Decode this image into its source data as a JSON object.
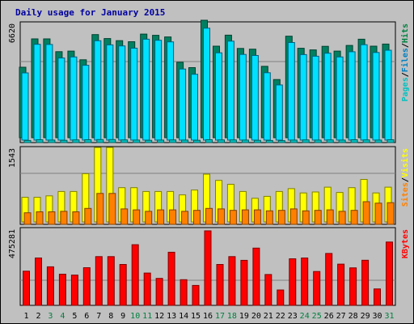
{
  "chart_data": {
    "type": "bar",
    "title": "Daily usage for January 2015",
    "categories": [
      "1",
      "2",
      "3",
      "4",
      "5",
      "6",
      "7",
      "8",
      "9",
      "10",
      "11",
      "12",
      "13",
      "14",
      "15",
      "16",
      "17",
      "18",
      "19",
      "20",
      "21",
      "22",
      "23",
      "24",
      "25",
      "26",
      "27",
      "28",
      "29",
      "30",
      "31"
    ],
    "weekend_days": [
      "3",
      "4",
      "10",
      "11",
      "17",
      "18",
      "24",
      "25",
      "31"
    ],
    "panels": [
      {
        "id": "hits-files",
        "ytick_label": "6620",
        "ymax": 6620,
        "right_label": [
          {
            "text": "Pages",
            "color": "#00c0c0"
          },
          {
            "text": "/",
            "color": "#000000"
          },
          {
            "text": "Files",
            "color": "#0080c0"
          },
          {
            "text": "/",
            "color": "#000000"
          },
          {
            "text": "Hits",
            "color": "#008040"
          }
        ],
        "series": [
          {
            "name": "Hits",
            "color": "#008060",
            "values": [
              3970,
              5570,
              5570,
              4850,
              4880,
              4390,
              5810,
              5590,
              5470,
              5410,
              5840,
              5770,
              5680,
              4250,
              3950,
              6620,
              5160,
              5780,
              5030,
              4990,
              4020,
              3280,
              5720,
              5040,
              4950,
              5150,
              4880,
              5200,
              5550,
              5160,
              5280
            ]
          },
          {
            "name": "Files",
            "color": "#00e0ff",
            "values": [
              3790,
              5400,
              5390,
              4630,
              4690,
              4220,
              5600,
              5370,
              5310,
              5180,
              5690,
              5630,
              5540,
              4010,
              3710,
              6310,
              4920,
              5580,
              4830,
              4770,
              3800,
              3110,
              5500,
              4820,
              4730,
              4900,
              4690,
              4980,
              5380,
              4940,
              5070
            ]
          },
          {
            "name": "Pages",
            "color": "#00c0c0",
            "values": [
              120,
              160,
              140,
              130,
              150,
              160,
              170,
              170,
              150,
              140,
              130,
              140,
              150,
              140,
              130,
              160,
              150,
              150,
              140,
              130,
              120,
              110,
              140,
              150,
              140,
              150,
              140,
              160,
              150,
              140,
              160
            ]
          }
        ]
      },
      {
        "id": "visits-sites",
        "ytick_label": "1543",
        "ymax": 1543,
        "right_label": [
          {
            "text": "Sites",
            "color": "#ff8000"
          },
          {
            "text": "/",
            "color": "#000000"
          },
          {
            "text": "Visits",
            "color": "#ffff00"
          }
        ],
        "series": [
          {
            "name": "Visits",
            "color": "#ffff00",
            "values": [
              510,
              510,
              540,
              630,
              630,
              1000,
              1543,
              1543,
              710,
              710,
              630,
              630,
              630,
              560,
              660,
              990,
              860,
              780,
              630,
              490,
              530,
              630,
              690,
              600,
              620,
              720,
              610,
              710,
              880,
              600,
              720
            ]
          },
          {
            "name": "Sites",
            "color": "#ff8000",
            "values": [
              240,
              260,
              260,
              270,
              260,
              330,
              640,
              640,
              320,
              300,
              270,
              300,
              300,
              270,
              290,
              330,
              320,
              290,
              300,
              300,
              280,
              290,
              320,
              280,
              290,
              300,
              270,
              290,
              470,
              440,
              450
            ]
          }
        ]
      },
      {
        "id": "kbytes",
        "ytick_label": "475281",
        "ymax": 475281,
        "right_label": [
          {
            "text": "KBytes",
            "color": "#ff0000"
          }
        ],
        "series": [
          {
            "name": "KBytes",
            "color": "#ff0000",
            "values": [
              218000,
              302000,
              246000,
              199000,
              193000,
              240000,
              311000,
              311000,
              261000,
              387000,
              206000,
              172000,
              339000,
              164000,
              127000,
              475281,
              261000,
              311000,
              287000,
              365000,
              197000,
              98000,
              297000,
              302000,
              216000,
              331000,
              263000,
              239000,
              288000,
              105000,
              404000
            ]
          }
        ]
      }
    ],
    "grid": true,
    "xlabel": "",
    "ylabel": ""
  }
}
